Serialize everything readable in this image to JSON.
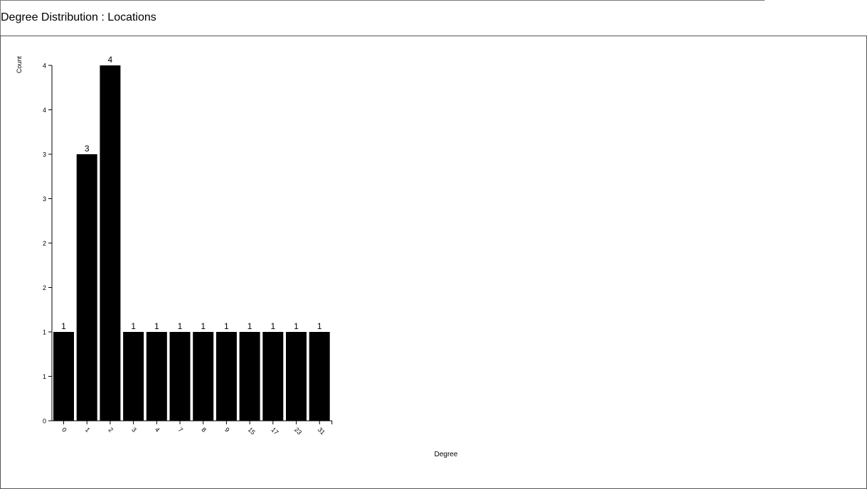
{
  "header": {
    "title": "Degree Distribution : Locations"
  },
  "chart_data": {
    "type": "bar",
    "title": "Degree Distribution : Locations",
    "xlabel": "Degree",
    "ylabel": "Count",
    "categories": [
      "0",
      "1",
      "2",
      "3",
      "4",
      "7",
      "8",
      "9",
      "15",
      "17",
      "23",
      "31"
    ],
    "values": [
      1,
      3,
      4,
      1,
      1,
      1,
      1,
      1,
      1,
      1,
      1,
      1
    ],
    "ylim": [
      0,
      4
    ],
    "y_tick_values": [
      0,
      0.5,
      1,
      1.5,
      2,
      2.5,
      3,
      3.5,
      4
    ],
    "y_tick_labels": [
      "0",
      "1",
      "1",
      "2",
      "2",
      "3",
      "3",
      "4",
      "4"
    ],
    "grid": false,
    "legend": "none",
    "bar_color": "#000000"
  }
}
